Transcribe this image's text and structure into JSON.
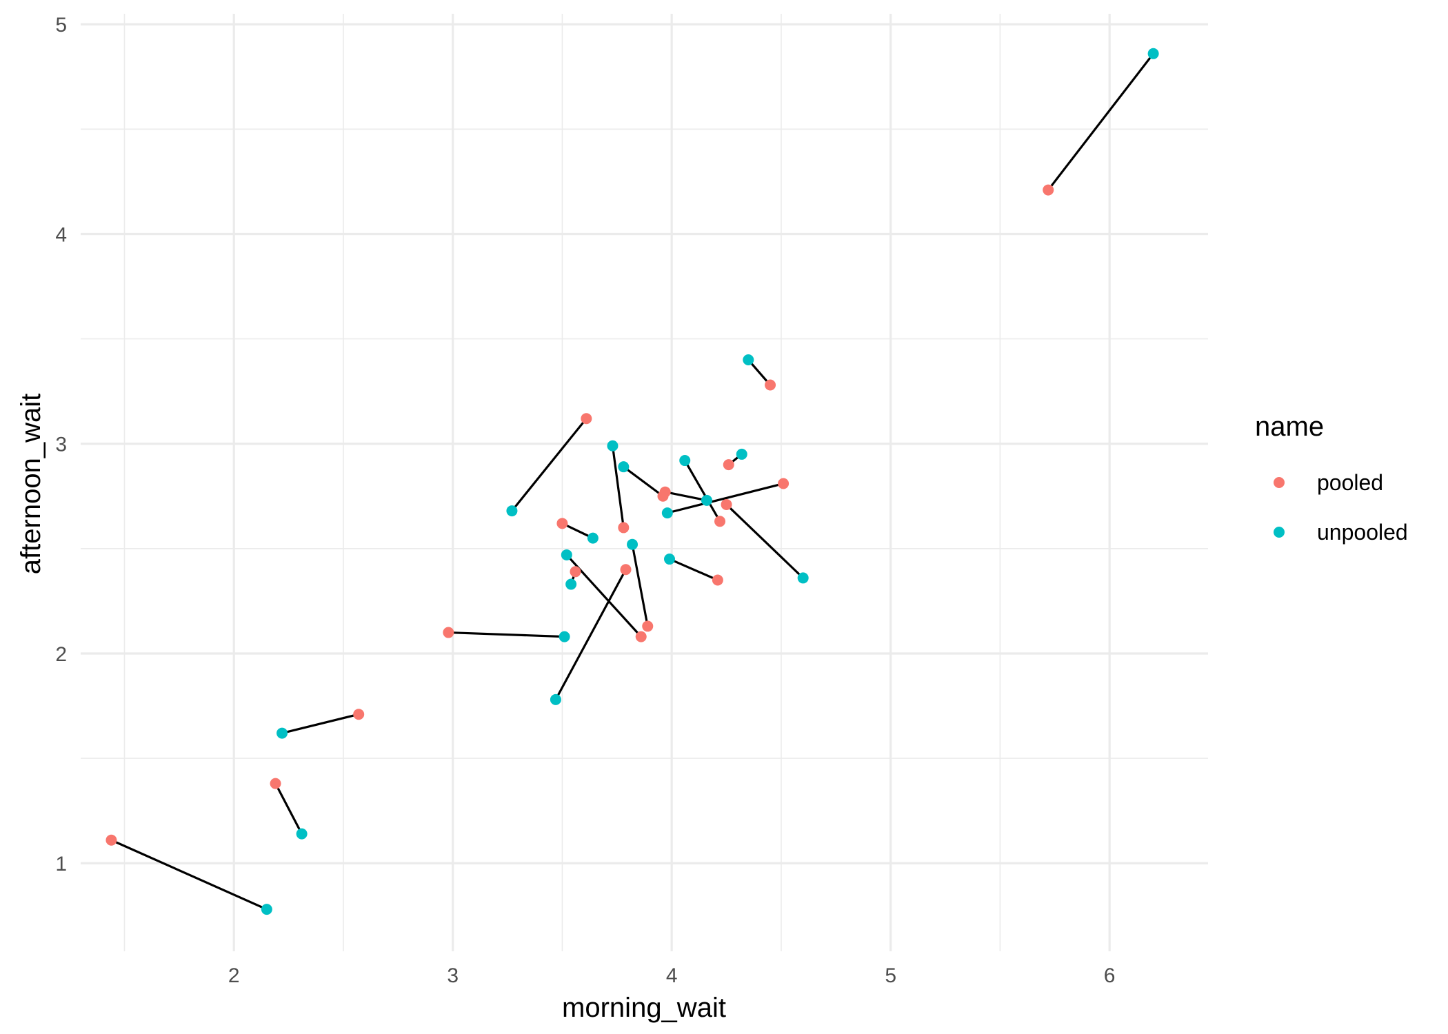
{
  "chart_data": {
    "type": "scatter",
    "title": "",
    "xlabel": "morning_wait",
    "ylabel": "afternoon_wait",
    "xlim": [
      1.3,
      6.45
    ],
    "ylim": [
      0.58,
      5.05
    ],
    "x_ticks": [
      2,
      3,
      4,
      5,
      6
    ],
    "y_ticks": [
      1,
      2,
      3,
      4,
      5
    ],
    "x_minor_ticks": [
      1.5,
      2.5,
      3.5,
      4.5,
      5.5
    ],
    "y_minor_ticks": [
      1.5,
      2.5,
      3.5,
      4.5
    ],
    "grid": true,
    "legend": {
      "title": "name",
      "placement": "right",
      "entries": [
        {
          "label": "pooled",
          "color": "#F8766D"
        },
        {
          "label": "unpooled",
          "color": "#00BFC4"
        }
      ]
    },
    "series": [
      {
        "name": "pooled",
        "color": "#F8766D",
        "points": [
          [
            1.44,
            1.11
          ],
          [
            2.19,
            1.38
          ],
          [
            2.57,
            1.71
          ],
          [
            2.98,
            2.1
          ],
          [
            3.5,
            2.62
          ],
          [
            3.56,
            2.39
          ],
          [
            3.61,
            3.12
          ],
          [
            3.78,
            2.6
          ],
          [
            3.79,
            2.4
          ],
          [
            3.86,
            2.08
          ],
          [
            3.89,
            2.13
          ],
          [
            3.96,
            2.75
          ],
          [
            3.97,
            2.77
          ],
          [
            4.21,
            2.35
          ],
          [
            4.22,
            2.63
          ],
          [
            4.25,
            2.71
          ],
          [
            4.26,
            2.9
          ],
          [
            4.45,
            3.28
          ],
          [
            4.51,
            2.81
          ],
          [
            5.72,
            4.21
          ]
        ]
      },
      {
        "name": "unpooled",
        "color": "#00BFC4",
        "points": [
          [
            2.15,
            0.78
          ],
          [
            2.31,
            1.14
          ],
          [
            2.22,
            1.62
          ],
          [
            3.51,
            2.08
          ],
          [
            3.64,
            2.55
          ],
          [
            3.54,
            2.33
          ],
          [
            3.27,
            2.68
          ],
          [
            3.73,
            2.99
          ],
          [
            3.47,
            1.78
          ],
          [
            3.52,
            2.47
          ],
          [
            3.82,
            2.52
          ],
          [
            3.78,
            2.89
          ],
          [
            4.16,
            2.73
          ],
          [
            3.99,
            2.45
          ],
          [
            4.06,
            2.92
          ],
          [
            4.6,
            2.36
          ],
          [
            4.32,
            2.95
          ],
          [
            4.35,
            3.4
          ],
          [
            3.98,
            2.67
          ],
          [
            6.2,
            4.86
          ]
        ]
      }
    ]
  }
}
